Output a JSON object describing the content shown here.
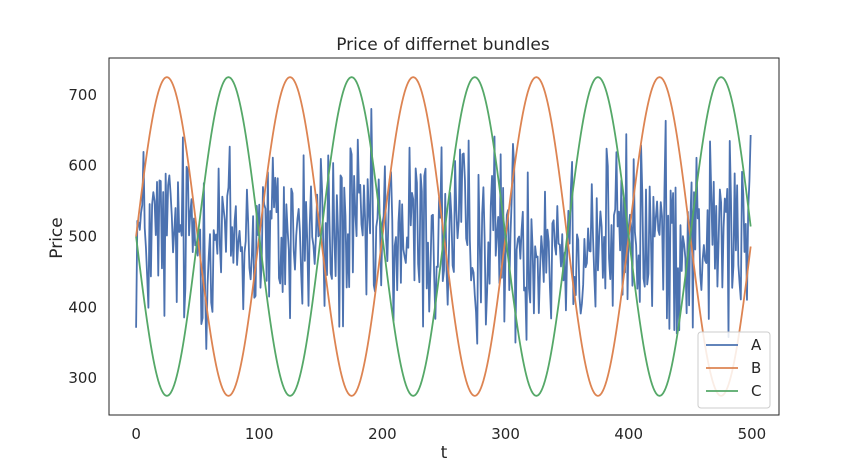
{
  "chart_data": {
    "type": "line",
    "title": "Price of differnet bundles",
    "xlabel": "t",
    "ylabel": "Price",
    "xlim": [
      -22,
      522
    ],
    "ylim": [
      248,
      752
    ],
    "xticks": [
      0,
      100,
      200,
      300,
      400,
      500
    ],
    "yticks": [
      300,
      400,
      500,
      600,
      700
    ],
    "grid": false,
    "legend_position": "bottom-right",
    "series": [
      {
        "name": "A",
        "color": "#4c72b0",
        "kind": "noise",
        "n_points": 500,
        "mean": 500,
        "min": 285,
        "max": 697
      },
      {
        "name": "B",
        "color": "#dd8452",
        "kind": "sine",
        "n_points": 500,
        "center": 500,
        "amplitude": 225,
        "period": 100,
        "phase": 0
      },
      {
        "name": "C",
        "color": "#55a868",
        "kind": "sine",
        "n_points": 500,
        "center": 500,
        "amplitude": 225,
        "period": 100,
        "phase": 3.14159
      }
    ]
  }
}
